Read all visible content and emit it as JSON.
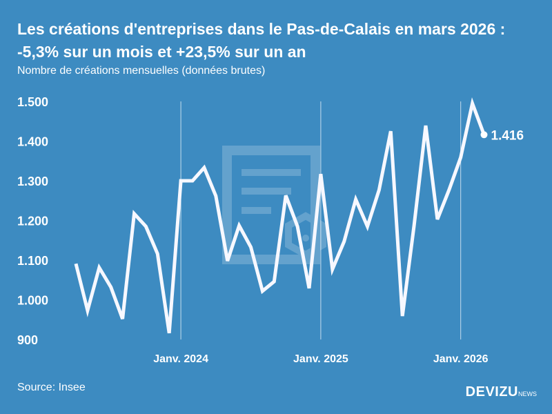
{
  "title": "Les créations d'entreprises dans le Pas-de-Calais en mars 2026 : -5,3% sur un mois et +23,5% sur un an",
  "subtitle": "Nombre de créations mensuelles (données brutes)",
  "source": "Source: Insee",
  "logo": {
    "main": "DEVIZU",
    "suffix": "NEWS"
  },
  "colors": {
    "background": "#3d8bc1",
    "line": "#ffffff"
  },
  "chart_data": {
    "type": "line",
    "title": "Les créations d'entreprises dans le Pas-de-Calais en mars 2026 : -5,3% sur un mois et +23,5% sur un an",
    "ylabel": "",
    "xlabel": "",
    "ylim": [
      900,
      1500
    ],
    "yticks": [
      900,
      1000,
      1100,
      1200,
      1300,
      1400,
      1500
    ],
    "ytick_labels": [
      "900",
      "1.000",
      "1.100",
      "1.200",
      "1.300",
      "1.400",
      "1.500"
    ],
    "xticks": [
      {
        "index": 9,
        "label": "Janv. 2024"
      },
      {
        "index": 21,
        "label": "Janv. 2025"
      },
      {
        "index": 33,
        "label": "Janv. 2026"
      }
    ],
    "x": [
      "2023-04",
      "2023-05",
      "2023-06",
      "2023-07",
      "2023-08",
      "2023-09",
      "2023-10",
      "2023-11",
      "2023-12",
      "2024-01",
      "2024-02",
      "2024-03",
      "2024-04",
      "2024-05",
      "2024-06",
      "2024-07",
      "2024-08",
      "2024-09",
      "2024-10",
      "2024-11",
      "2024-12",
      "2025-01",
      "2025-02",
      "2025-03",
      "2025-04",
      "2025-05",
      "2025-06",
      "2025-07",
      "2025-08",
      "2025-09",
      "2025-10",
      "2025-11",
      "2025-12",
      "2026-01",
      "2026-02",
      "2026-03"
    ],
    "values": [
      1091,
      973,
      1081,
      1032,
      952,
      1217,
      1185,
      1116,
      916,
      1300,
      1300,
      1333,
      1262,
      1098,
      1187,
      1133,
      1022,
      1046,
      1263,
      1185,
      1029,
      1317,
      1077,
      1147,
      1253,
      1185,
      1277,
      1425,
      959,
      1187,
      1439,
      1203,
      1277,
      1359,
      1495,
      1416
    ],
    "last_label": "1.416",
    "grid": "vertical lines at January",
    "legend": "none"
  }
}
